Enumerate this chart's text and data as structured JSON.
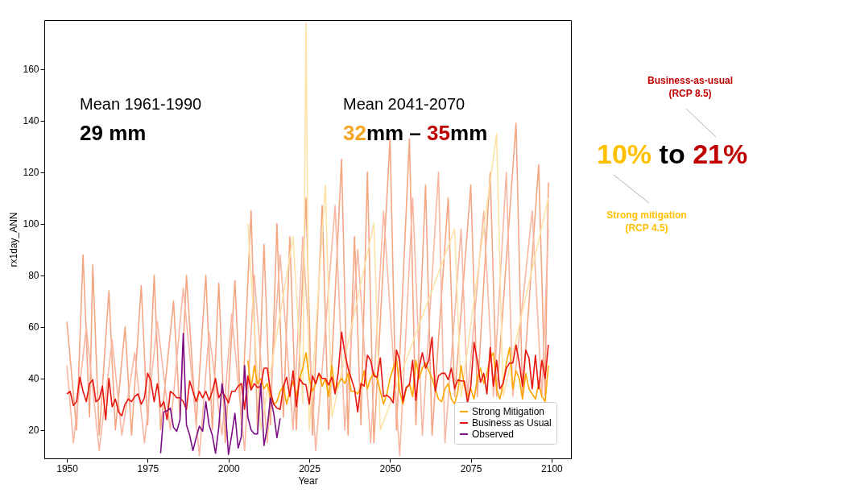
{
  "chart_data": {
    "type": "line",
    "xlabel": "Year",
    "ylabel": "rx1day_ANN",
    "xlim": [
      1943,
      2106
    ],
    "ylim": [
      9,
      179
    ],
    "xticks": [
      1950,
      1975,
      2000,
      2025,
      2050,
      2075,
      2100
    ],
    "yticks": [
      20,
      40,
      60,
      80,
      100,
      120,
      140,
      160
    ],
    "grid": false,
    "legend": "bottom right",
    "line_style": "solid",
    "annotations": [
      "Mean 1961-1990",
      "29 mm",
      "Mean 2041-2070",
      "32",
      "mm –",
      "35",
      "mm",
      "10%",
      "to",
      "21%",
      "Business-as-usual",
      "(RCP 8.5)",
      "Strong mitigation",
      "(RCP 4.5)"
    ],
    "series": [
      {
        "color": "#f4a582",
        "x": [
          1950,
          1953,
          1955,
          1957,
          1958,
          1960,
          1963,
          1965,
          1968,
          1970,
          1973,
          1975,
          1977,
          1979,
          1983,
          1985,
          1987,
          1990,
          1993,
          1995,
          1997,
          1999,
          2002,
          2004,
          2007,
          2009,
          2011,
          2013,
          2015,
          2017,
          2019,
          2021,
          2024,
          2026,
          2029,
          2031,
          2035,
          2037,
          2039,
          2041,
          2043,
          2045,
          2050,
          2052,
          2056,
          2058,
          2061,
          2063,
          2068,
          2070,
          2075,
          2077,
          2081,
          2083,
          2089,
          2091,
          2096,
          2098,
          2099
        ],
        "values": [
          62,
          20,
          88,
          25,
          84,
          18,
          74,
          20,
          60,
          18,
          76,
          22,
          80,
          20,
          70,
          25,
          80,
          22,
          80,
          20,
          77,
          15,
          78,
          22,
          105,
          20,
          92,
          22,
          100,
          25,
          95,
          20,
          110,
          18,
          107,
          20,
          125,
          18,
          95,
          22,
          120,
          15,
          133,
          20,
          133,
          22,
          115,
          18,
          110,
          33,
          115,
          33,
          120,
          33,
          139,
          33,
          123,
          33,
          116
        ]
      },
      {
        "color": "#f7b7a3",
        "x": [
          1950,
          1952,
          1956,
          1960,
          1964,
          1967,
          1971,
          1974,
          1978,
          1982,
          1986,
          1991,
          1994,
          1998,
          2001,
          2005,
          2008,
          2012,
          2016,
          2020,
          2023,
          2027,
          2033,
          2036,
          2040,
          2044,
          2048,
          2053,
          2057,
          2060,
          2065,
          2067,
          2072,
          2074,
          2079,
          2082,
          2086,
          2088,
          2094,
          2097,
          2099
        ],
        "values": [
          45,
          15,
          60,
          12,
          55,
          18,
          50,
          15,
          62,
          20,
          75,
          10,
          58,
          18,
          65,
          12,
          80,
          15,
          88,
          20,
          95,
          12,
          107,
          20,
          90,
          15,
          105,
          10,
          110,
          18,
          120,
          15,
          98,
          33,
          105,
          33,
          120,
          33,
          105,
          33,
          98
        ]
      },
      {
        "color": "#fde3a7",
        "x": [
          2006,
          2010,
          2020,
          2023,
          2024,
          2025,
          2030,
          2032,
          2045,
          2047,
          2070,
          2072,
          2083,
          2085,
          2099
        ],
        "values": [
          100,
          20,
          95,
          30,
          178,
          20,
          115,
          25,
          100,
          20,
          98,
          33,
          135,
          33,
          110
        ]
      },
      {
        "name": "Strong Mitigation",
        "color": "#ffa500",
        "x": [
          2006,
          2007,
          2008,
          2009,
          2010,
          2011,
          2012,
          2013,
          2014,
          2015,
          2016,
          2017,
          2018,
          2019,
          2020,
          2021,
          2022,
          2023,
          2024,
          2025,
          2026,
          2027,
          2028,
          2029,
          2030,
          2031,
          2032,
          2033,
          2034,
          2035,
          2036,
          2037,
          2038,
          2039,
          2040,
          2041,
          2042,
          2043,
          2044,
          2045,
          2046,
          2047,
          2048,
          2049,
          2050,
          2051,
          2052,
          2053,
          2054,
          2055,
          2056,
          2057,
          2058,
          2059,
          2060,
          2061,
          2062,
          2063,
          2064,
          2065,
          2066,
          2067,
          2068,
          2069,
          2070,
          2071,
          2072,
          2073,
          2074,
          2075,
          2076,
          2077,
          2078,
          2079,
          2080,
          2081,
          2082,
          2083,
          2084,
          2085,
          2086,
          2087,
          2088,
          2089,
          2090,
          2091,
          2092,
          2093,
          2094,
          2095,
          2096,
          2097,
          2098,
          2099
        ],
        "values": [
          47,
          36,
          45,
          38,
          40,
          36,
          38,
          33,
          30,
          31,
          35,
          37,
          30,
          35,
          39,
          33,
          40,
          44,
          50,
          40,
          35,
          38,
          42,
          37,
          40,
          33,
          45,
          35,
          38,
          40,
          38,
          42,
          35,
          35,
          34,
          37,
          43,
          36,
          40,
          42,
          40,
          35,
          30,
          34,
          40,
          44,
          48,
          35,
          30,
          36,
          38,
          33,
          47,
          40,
          44,
          46,
          43,
          40,
          36,
          32,
          31,
          36,
          38,
          32,
          30,
          35,
          45,
          37,
          33,
          36,
          32,
          40,
          44,
          38,
          42,
          48,
          50,
          36,
          32,
          38,
          46,
          52,
          36,
          43,
          40,
          32,
          42,
          36,
          34,
          32,
          38,
          33,
          31,
          45
        ]
      },
      {
        "name": "Business as Usual",
        "color": "#e8150f",
        "x": [
          1950,
          1951,
          1952,
          1953,
          1954,
          1955,
          1956,
          1957,
          1958,
          1959,
          1960,
          1961,
          1962,
          1963,
          1964,
          1965,
          1966,
          1967,
          1968,
          1969,
          1970,
          1971,
          1972,
          1973,
          1974,
          1975,
          1976,
          1977,
          1978,
          1979,
          1980,
          1981,
          1982,
          1983,
          1984,
          1985,
          1986,
          1987,
          1988,
          1989,
          1990,
          1991,
          1992,
          1993,
          1994,
          1995,
          1996,
          1997,
          1998,
          1999,
          2000,
          2001,
          2002,
          2003,
          2004,
          2005,
          2006,
          2007,
          2008,
          2009,
          2010,
          2011,
          2012,
          2013,
          2014,
          2015,
          2016,
          2017,
          2018,
          2019,
          2020,
          2021,
          2022,
          2023,
          2024,
          2025,
          2026,
          2027,
          2028,
          2029,
          2030,
          2031,
          2032,
          2033,
          2034,
          2035,
          2036,
          2037,
          2038,
          2039,
          2040,
          2041,
          2042,
          2043,
          2044,
          2045,
          2046,
          2047,
          2048,
          2049,
          2050,
          2051,
          2052,
          2053,
          2054,
          2055,
          2056,
          2057,
          2058,
          2059,
          2060,
          2061,
          2062,
          2063,
          2064,
          2065,
          2066,
          2067,
          2068,
          2069,
          2070,
          2071,
          2072,
          2073,
          2074,
          2075,
          2076,
          2077,
          2078,
          2079,
          2080,
          2081,
          2082,
          2083,
          2084,
          2085,
          2086,
          2087,
          2088,
          2089,
          2090,
          2091,
          2092,
          2093,
          2094,
          2095,
          2096,
          2097,
          2098,
          2099
        ],
        "values": [
          34,
          35,
          29.5,
          31,
          40.5,
          35,
          31,
          38,
          39.5,
          31,
          32,
          37,
          24,
          40,
          29,
          32,
          27,
          25.5,
          30,
          32,
          31,
          33,
          34,
          30,
          32.5,
          42,
          39,
          31,
          38,
          29,
          31,
          24,
          35,
          34,
          32.5,
          32.5,
          31,
          28,
          39,
          35,
          31,
          35,
          32.5,
          35,
          31.5,
          35,
          40,
          32.5,
          35,
          33,
          30.5,
          35,
          35,
          37,
          38,
          28,
          41,
          35.5,
          38,
          36.5,
          37,
          44,
          44,
          35,
          30,
          28.5,
          28,
          37,
          40.5,
          33,
          43,
          29,
          40,
          38,
          37.5,
          30,
          41,
          38,
          42,
          40,
          40,
          37.5,
          40.5,
          34,
          42.5,
          58,
          50,
          44,
          40,
          36,
          27,
          38,
          37,
          49,
          47,
          41,
          40.5,
          48,
          33,
          33.5,
          32.5,
          30.5,
          51,
          47,
          31,
          36.5,
          37.5,
          47,
          31.5,
          44,
          50,
          44,
          47,
          56,
          35,
          41,
          42,
          42,
          39.5,
          44,
          36,
          39.5,
          39,
          39,
          30.5,
          37,
          54,
          47,
          38.5,
          42,
          34,
          52,
          37,
          47,
          36,
          38,
          44,
          46,
          46,
          53,
          46,
          37,
          51,
          48,
          36,
          49,
          36,
          47,
          40,
          53
        ]
      },
      {
        "name": "Observed",
        "color": "#7b0d87",
        "x": [
          1979,
          1980,
          1981,
          1982,
          1983,
          1984,
          1985,
          1986,
          1987,
          1988,
          1989,
          1990,
          1991,
          1992,
          1993,
          1994,
          1995,
          1996,
          1997,
          1998,
          1999,
          2000,
          2001,
          2002,
          2003,
          2004,
          2005,
          2006,
          2007,
          2008,
          2009,
          2010,
          2011,
          2012,
          2013,
          2014,
          2015,
          2016
        ],
        "values": [
          11,
          27,
          27.5,
          28.5,
          21,
          19.5,
          24,
          57.5,
          22,
          18,
          12,
          17,
          21.5,
          19.5,
          31,
          22,
          18,
          11,
          21,
          38,
          29,
          10.5,
          18,
          26.5,
          13,
          17.5,
          45,
          25,
          20,
          18.5,
          18.5,
          38,
          14,
          21,
          32.5,
          26.5,
          17,
          24.5
        ]
      }
    ]
  }
}
